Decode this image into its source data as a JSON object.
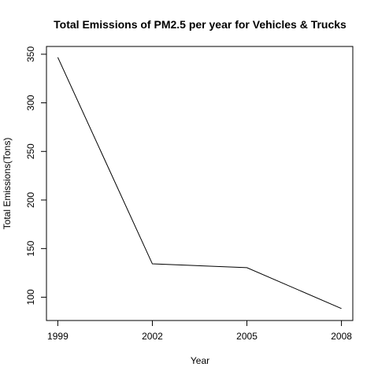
{
  "chart_data": {
    "type": "line",
    "title": "Total Emissions of PM2.5 per year for Vehicles & Trucks",
    "xlabel": "Year",
    "ylabel": "Total Emissions(Tons)",
    "x": [
      1999,
      2002,
      2005,
      2008
    ],
    "xticks": [
      "1999",
      "2002",
      "2005",
      "2008"
    ],
    "yticks": [
      "100",
      "150",
      "200",
      "250",
      "300",
      "350"
    ],
    "ylim": [
      76,
      358
    ],
    "series": [
      {
        "values": [
          346.8,
          134.3,
          130.4,
          88.3
        ]
      }
    ],
    "grid": false,
    "legend": "none"
  }
}
